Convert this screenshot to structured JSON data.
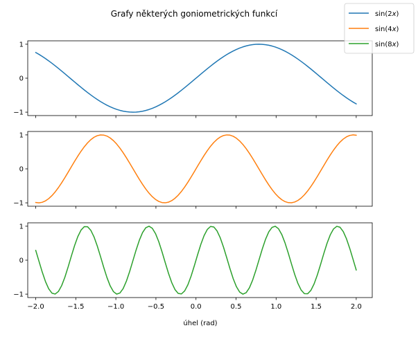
{
  "chart_data": {
    "type": "line",
    "title": "Grafy některých goniometrických funkcí",
    "xlabel": "úhel (rad)",
    "xlim": [
      -2.1,
      2.2
    ],
    "ylim": [
      -1.1,
      1.1
    ],
    "x_ticks": [
      -2.0,
      -1.5,
      -1.0,
      -0.5,
      0.0,
      0.5,
      1.0,
      1.5,
      2.0
    ],
    "x_tick_labels": [
      "−2.0",
      "−1.5",
      "−1.0",
      "−0.5",
      "0.0",
      "0.5",
      "1.0",
      "1.5",
      "2.0"
    ],
    "y_ticks": [
      -1,
      0,
      1
    ],
    "y_tick_labels": [
      "−1",
      "0",
      "1"
    ],
    "grid": false,
    "sharex": true,
    "legend": {
      "placement": "top-right",
      "entries": [
        {
          "fn": "sin(2",
          "var": "x",
          "close": ")"
        },
        {
          "fn": "sin(4",
          "var": "x",
          "close": ")"
        },
        {
          "fn": "sin(8",
          "var": "x",
          "close": ")"
        }
      ]
    },
    "series": [
      {
        "frequency": 2,
        "color": "#1f77b4"
      },
      {
        "frequency": 4,
        "color": "#ff7f0e"
      },
      {
        "frequency": 8,
        "color": "#2ca02c"
      }
    ],
    "x_domain": [
      -2.0,
      2.0
    ],
    "sample_count": 100
  }
}
